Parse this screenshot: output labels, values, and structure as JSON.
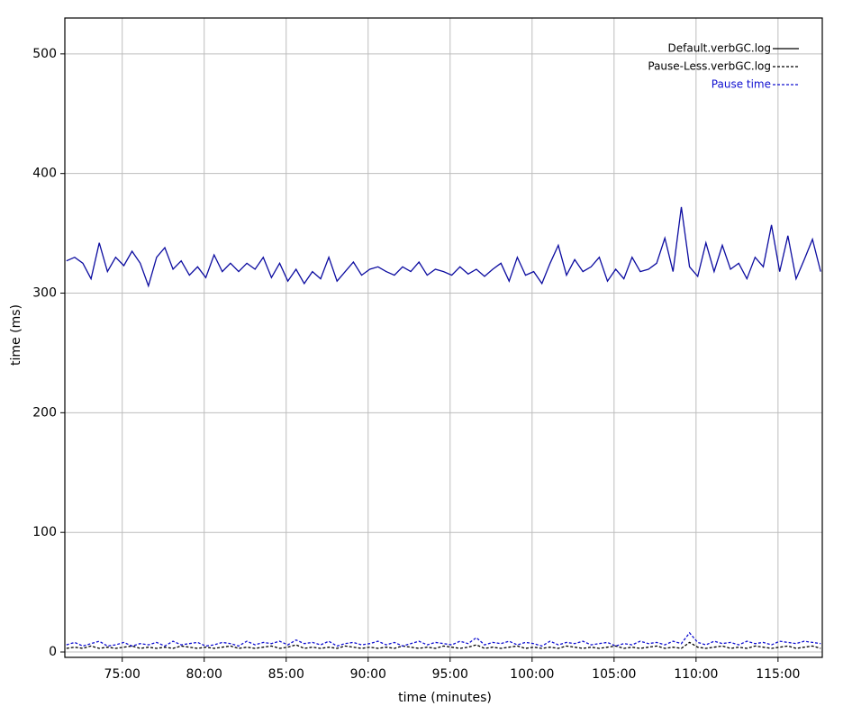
{
  "chart_data": {
    "type": "line",
    "xlabel": "time (minutes)",
    "ylabel": "time (ms)",
    "x": [
      71.6,
      72.1,
      72.6,
      73.1,
      73.6,
      74.1,
      74.6,
      75.1,
      75.6,
      76.1,
      76.6,
      77.1,
      77.6,
      78.1,
      78.6,
      79.1,
      79.6,
      80.1,
      80.6,
      81.1,
      81.6,
      82.1,
      82.6,
      83.1,
      83.6,
      84.1,
      84.6,
      85.1,
      85.6,
      86.1,
      86.6,
      87.1,
      87.6,
      88.1,
      88.6,
      89.1,
      89.6,
      90.1,
      90.6,
      91.1,
      91.6,
      92.1,
      92.6,
      93.1,
      93.6,
      94.1,
      94.6,
      95.1,
      95.6,
      96.1,
      96.6,
      97.1,
      97.6,
      98.1,
      98.6,
      99.1,
      99.6,
      100.1,
      100.6,
      101.1,
      101.6,
      102.1,
      102.6,
      103.1,
      103.6,
      104.1,
      104.6,
      105.1,
      105.6,
      106.1,
      106.6,
      107.1,
      107.6,
      108.1,
      108.6,
      109.1,
      109.6,
      110.1,
      110.6,
      111.1,
      111.6,
      112.1,
      112.6,
      113.1,
      113.6,
      114.1,
      114.6,
      115.1,
      115.6,
      116.1,
      116.6,
      117.1,
      117.6
    ],
    "series": [
      {
        "name": "Default.verbGC.log",
        "color": "#0c0ca0",
        "dashed": false,
        "values": [
          327,
          330,
          325,
          312,
          342,
          318,
          330,
          323,
          335,
          325,
          306,
          330,
          338,
          320,
          327,
          315,
          322,
          313,
          332,
          318,
          325,
          318,
          325,
          320,
          330,
          313,
          325,
          310,
          320,
          308,
          318,
          312,
          330,
          310,
          318,
          326,
          315,
          320,
          322,
          318,
          315,
          322,
          318,
          326,
          315,
          320,
          318,
          315,
          322,
          316,
          320,
          314,
          320,
          325,
          310,
          330,
          315,
          318,
          308,
          325,
          340,
          315,
          328,
          318,
          322,
          330,
          310,
          320,
          312,
          330,
          318,
          320,
          325,
          346,
          318,
          372,
          322,
          314,
          342,
          318,
          340,
          320,
          325,
          312,
          330,
          322,
          357,
          318,
          348,
          312,
          328,
          345,
          318
        ]
      },
      {
        "name": "Pause-Less.verbGC.log",
        "color": "#000000",
        "dashed": true,
        "values": [
          3,
          4,
          3,
          5,
          3,
          4,
          3,
          4,
          5,
          3,
          4,
          3,
          4,
          3,
          5,
          4,
          3,
          4,
          3,
          4,
          5,
          3,
          4,
          3,
          4,
          5,
          3,
          4,
          6,
          3,
          4,
          3,
          4,
          3,
          5,
          4,
          3,
          4,
          3,
          4,
          3,
          5,
          4,
          3,
          4,
          3,
          5,
          4,
          3,
          4,
          6,
          3,
          4,
          3,
          4,
          5,
          3,
          4,
          3,
          4,
          3,
          5,
          4,
          3,
          4,
          3,
          4,
          5,
          3,
          4,
          3,
          4,
          5,
          3,
          4,
          3,
          8,
          4,
          3,
          4,
          5,
          3,
          4,
          3,
          5,
          4,
          3,
          4,
          5,
          3,
          4,
          5,
          3
        ]
      },
      {
        "name": "Pause time",
        "color": "#1010d0",
        "dashed": true,
        "values": [
          6,
          8,
          5,
          7,
          9,
          5,
          6,
          8,
          5,
          7,
          6,
          8,
          5,
          9,
          6,
          7,
          8,
          5,
          6,
          8,
          7,
          5,
          9,
          6,
          8,
          7,
          9,
          6,
          10,
          7,
          8,
          6,
          9,
          5,
          7,
          8,
          6,
          7,
          9,
          6,
          8,
          5,
          7,
          9,
          6,
          8,
          7,
          6,
          9,
          7,
          12,
          6,
          8,
          7,
          9,
          6,
          8,
          7,
          5,
          9,
          6,
          8,
          7,
          9,
          6,
          7,
          8,
          5,
          7,
          6,
          9,
          7,
          8,
          6,
          9,
          7,
          16,
          8,
          6,
          9,
          7,
          8,
          6,
          9,
          7,
          8,
          6,
          9,
          8,
          7,
          9,
          8,
          7
        ]
      }
    ],
    "xlim": [
      71.5,
      117.7
    ],
    "ylim": [
      -4.5,
      530
    ],
    "xticks": [
      {
        "value": 75,
        "label": "75:00"
      },
      {
        "value": 80,
        "label": "80:00"
      },
      {
        "value": 85,
        "label": "85:00"
      },
      {
        "value": 90,
        "label": "90:00"
      },
      {
        "value": 95,
        "label": "95:00"
      },
      {
        "value": 100,
        "label": "100:00"
      },
      {
        "value": 105,
        "label": "105:00"
      },
      {
        "value": 110,
        "label": "110:00"
      },
      {
        "value": 115,
        "label": "115:00"
      }
    ],
    "yticks": [
      0,
      100,
      200,
      300,
      400,
      500
    ],
    "grid": true,
    "legend": "upper right"
  }
}
